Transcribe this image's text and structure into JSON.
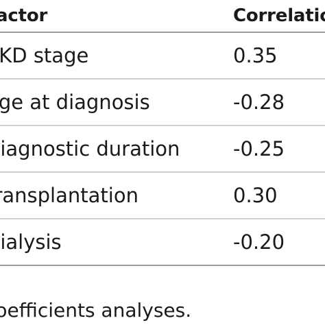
{
  "table": {
    "headers": {
      "factor": "Factor",
      "correlation": "Correlation"
    },
    "rows": [
      {
        "factor": "CKD stage",
        "correlation": "0.35"
      },
      {
        "factor": "Age at diagnosis",
        "correlation": "-0.28"
      },
      {
        "factor": "Diagnostic duration",
        "correlation": "-0.25"
      },
      {
        "factor": "Transplantation",
        "correlation": "0.30"
      },
      {
        "factor": "Dialysis",
        "correlation": "-0.20"
      }
    ]
  },
  "caption": "coefficients analyses."
}
